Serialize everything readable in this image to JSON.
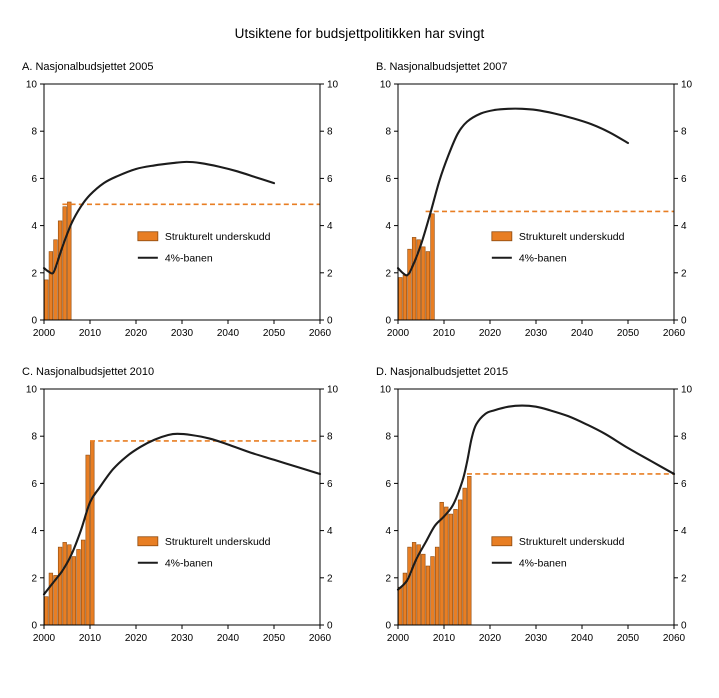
{
  "title": "Utsiktene for budsjettpolitikken har svingt",
  "colors": {
    "bar_fill": "#E87E23",
    "bar_stroke": "#8C4A10",
    "line": "#1C1C1C",
    "dashed": "#E87E23",
    "axis": "#000000"
  },
  "chart_data": [
    {
      "type": "bar+line",
      "panel_label": "A.  Nasjonalbudsjettet 2005",
      "xlim": [
        2000,
        2060
      ],
      "ylim": [
        0,
        10
      ],
      "xticks": [
        2000,
        2010,
        2020,
        2030,
        2040,
        2050,
        2060
      ],
      "yticks": [
        0,
        2,
        4,
        6,
        8,
        10
      ],
      "grid": false,
      "legend": {
        "bar": "Strukturelt underskudd",
        "line": "4%-banen",
        "position": "center"
      },
      "bars": {
        "name": "Strukturelt underskudd",
        "start_year": 2000,
        "values": [
          1.7,
          2.9,
          3.4,
          4.2,
          4.8,
          5.0
        ]
      },
      "dashed": {
        "level": 4.9,
        "from": 2004,
        "to": 2060
      },
      "line": {
        "name": "4%-banen",
        "x": [
          2000,
          2001,
          2002,
          2003,
          2004,
          2006,
          2008,
          2010,
          2013,
          2016,
          2020,
          2024,
          2028,
          2031,
          2034,
          2038,
          2042,
          2046,
          2050
        ],
        "y": [
          2.2,
          2.05,
          2.0,
          2.5,
          3.1,
          4.1,
          4.8,
          5.3,
          5.8,
          6.1,
          6.4,
          6.55,
          6.65,
          6.7,
          6.65,
          6.5,
          6.3,
          6.05,
          5.8
        ]
      }
    },
    {
      "type": "bar+line",
      "panel_label": "B.  Nasjonalbudsjettet 2007",
      "xlim": [
        2000,
        2060
      ],
      "ylim": [
        0,
        10
      ],
      "xticks": [
        2000,
        2010,
        2020,
        2030,
        2040,
        2050,
        2060
      ],
      "yticks": [
        0,
        2,
        4,
        6,
        8,
        10
      ],
      "grid": false,
      "legend": {
        "bar": "Strukturelt underskudd",
        "line": "4%-banen",
        "position": "center"
      },
      "bars": {
        "name": "Strukturelt underskudd",
        "start_year": 2000,
        "values": [
          1.8,
          1.9,
          3.0,
          3.5,
          3.4,
          3.1,
          2.9,
          4.5
        ]
      },
      "dashed": {
        "level": 4.6,
        "from": 2006,
        "to": 2060
      },
      "line": {
        "name": "4%-banen",
        "x": [
          2000,
          2001,
          2002,
          2003,
          2005,
          2007,
          2009,
          2011,
          2013,
          2015,
          2018,
          2021,
          2024,
          2027,
          2030,
          2034,
          2038,
          2042,
          2046,
          2050
        ],
        "y": [
          2.2,
          2.0,
          1.9,
          2.2,
          3.2,
          4.5,
          5.9,
          7.0,
          7.9,
          8.4,
          8.75,
          8.9,
          8.95,
          8.95,
          8.9,
          8.75,
          8.55,
          8.3,
          7.95,
          7.5
        ]
      }
    },
    {
      "type": "bar+line",
      "panel_label": "C.  Nasjonalbudsjettet 2010",
      "xlim": [
        2000,
        2060
      ],
      "ylim": [
        0,
        10
      ],
      "xticks": [
        2000,
        2010,
        2020,
        2030,
        2040,
        2050,
        2060
      ],
      "yticks": [
        0,
        2,
        4,
        6,
        8,
        10
      ],
      "grid": false,
      "legend": {
        "bar": "Strukturelt underskudd",
        "line": "4%-banen",
        "position": "center"
      },
      "bars": {
        "name": "Strukturelt underskudd",
        "start_year": 2000,
        "values": [
          1.2,
          2.2,
          2.1,
          3.3,
          3.5,
          3.4,
          2.9,
          3.2,
          3.6,
          7.2,
          7.8
        ]
      },
      "dashed": {
        "level": 7.8,
        "from": 2010,
        "to": 2060
      },
      "line": {
        "name": "4%-banen",
        "x": [
          2000,
          2002,
          2004,
          2006,
          2008,
          2010,
          2012,
          2015,
          2018,
          2021,
          2024,
          2027,
          2029,
          2032,
          2036,
          2040,
          2045,
          2050,
          2055,
          2060
        ],
        "y": [
          1.3,
          1.8,
          2.3,
          3.0,
          4.0,
          5.2,
          5.8,
          6.6,
          7.15,
          7.55,
          7.85,
          8.05,
          8.1,
          8.05,
          7.9,
          7.65,
          7.3,
          7.0,
          6.7,
          6.4
        ]
      }
    },
    {
      "type": "bar+line",
      "panel_label": "D.  Nasjonalbudsjettet 2015",
      "xlim": [
        2000,
        2060
      ],
      "ylim": [
        0,
        10
      ],
      "xticks": [
        2000,
        2010,
        2020,
        2030,
        2040,
        2050,
        2060
      ],
      "yticks": [
        0,
        2,
        4,
        6,
        8,
        10
      ],
      "grid": false,
      "legend": {
        "bar": "Strukturelt underskudd",
        "line": "4%-banen",
        "position": "center"
      },
      "bars": {
        "name": "Strukturelt underskudd",
        "start_year": 2000,
        "values": [
          1.6,
          2.2,
          3.3,
          3.5,
          3.4,
          3.0,
          2.5,
          2.9,
          3.3,
          5.2,
          5.0,
          4.7,
          4.9,
          5.3,
          5.8,
          6.3
        ]
      },
      "dashed": {
        "level": 6.4,
        "from": 2015,
        "to": 2060
      },
      "line": {
        "name": "4%-banen",
        "x": [
          2000,
          2002,
          2004,
          2006,
          2008,
          2010,
          2012,
          2014,
          2015,
          2016,
          2017,
          2019,
          2021,
          2024,
          2027,
          2030,
          2033,
          2037,
          2041,
          2045,
          2050,
          2055,
          2060
        ],
        "y": [
          1.5,
          1.9,
          2.8,
          3.5,
          4.2,
          4.6,
          5.1,
          6.1,
          6.9,
          7.9,
          8.5,
          8.95,
          9.1,
          9.25,
          9.3,
          9.25,
          9.1,
          8.85,
          8.5,
          8.1,
          7.5,
          6.95,
          6.4
        ]
      }
    }
  ]
}
